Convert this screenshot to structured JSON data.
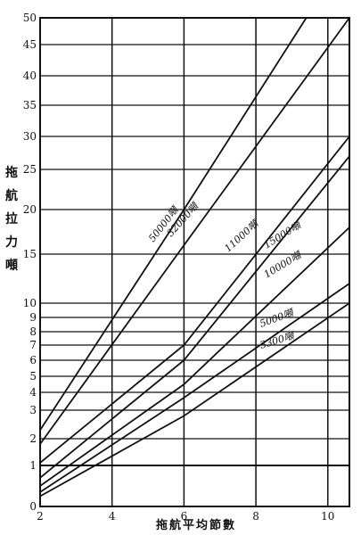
{
  "chart_data": {
    "type": "line",
    "title": "",
    "xlabel": "拖航平均節數",
    "ylabel": "拖航拉力噸",
    "xlim": [
      2,
      10.6
    ],
    "ylim": [
      0,
      50
    ],
    "xticks": [
      "2",
      "4",
      "6",
      "8",
      "10"
    ],
    "yticks": [
      {
        "v": 0,
        "label": "0"
      },
      {
        "v": 1,
        "label": "1"
      },
      {
        "v": 2,
        "label": "2"
      },
      {
        "v": 3,
        "label": "3"
      },
      {
        "v": 4,
        "label": "4"
      },
      {
        "v": 5,
        "label": "5"
      },
      {
        "v": 6,
        "label": "6"
      },
      {
        "v": 7,
        "label": "7"
      },
      {
        "v": 8,
        "label": "8"
      },
      {
        "v": 9,
        "label": "9"
      },
      {
        "v": 10,
        "label": "10"
      },
      {
        "v": 15,
        "label": "15"
      },
      {
        "v": 20,
        "label": "20"
      },
      {
        "v": 25,
        "label": "25"
      },
      {
        "v": 30,
        "label": "30"
      },
      {
        "v": 35,
        "label": "35"
      },
      {
        "v": 40,
        "label": "40"
      },
      {
        "v": 45,
        "label": "45"
      },
      {
        "v": 50,
        "label": "50"
      }
    ],
    "scale": "nonlinear (0-10 expanded, 10-50 compressed)",
    "grid": true,
    "series": [
      {
        "name": "50000噸",
        "points": [
          [
            2,
            2.3
          ],
          [
            6,
            20
          ],
          [
            9.4,
            50
          ]
        ]
      },
      {
        "name": "32000噸",
        "points": [
          [
            2,
            1.8
          ],
          [
            6,
            16
          ],
          [
            10.6,
            50
          ]
        ]
      },
      {
        "name": "11000噸",
        "points": [
          [
            2,
            1.1
          ],
          [
            6,
            7
          ],
          [
            10.6,
            30
          ]
        ]
      },
      {
        "name": "15000噸",
        "points": [
          [
            2,
            0.7
          ],
          [
            6,
            6
          ],
          [
            10.6,
            27
          ]
        ]
      },
      {
        "name": "10000噸",
        "points": [
          [
            2,
            0.5
          ],
          [
            6,
            4.5
          ],
          [
            10.6,
            18
          ]
        ]
      },
      {
        "name": "5000噸",
        "points": [
          [
            2,
            0.35
          ],
          [
            6,
            3.7
          ],
          [
            10.6,
            12
          ]
        ]
      },
      {
        "name": "3300噸",
        "points": [
          [
            2,
            0.25
          ],
          [
            6,
            2.8
          ],
          [
            10.6,
            10
          ]
        ]
      }
    ],
    "annotations": [
      {
        "text": "50000噸",
        "series": 0
      },
      {
        "text": "32000噸",
        "series": 1
      },
      {
        "text": "11000噸",
        "series": 2
      },
      {
        "text": "15000噸",
        "series": 3
      },
      {
        "text": "10000噸",
        "series": 4
      },
      {
        "text": "5000噸",
        "series": 5
      },
      {
        "text": "3300噸",
        "series": 6
      }
    ]
  }
}
